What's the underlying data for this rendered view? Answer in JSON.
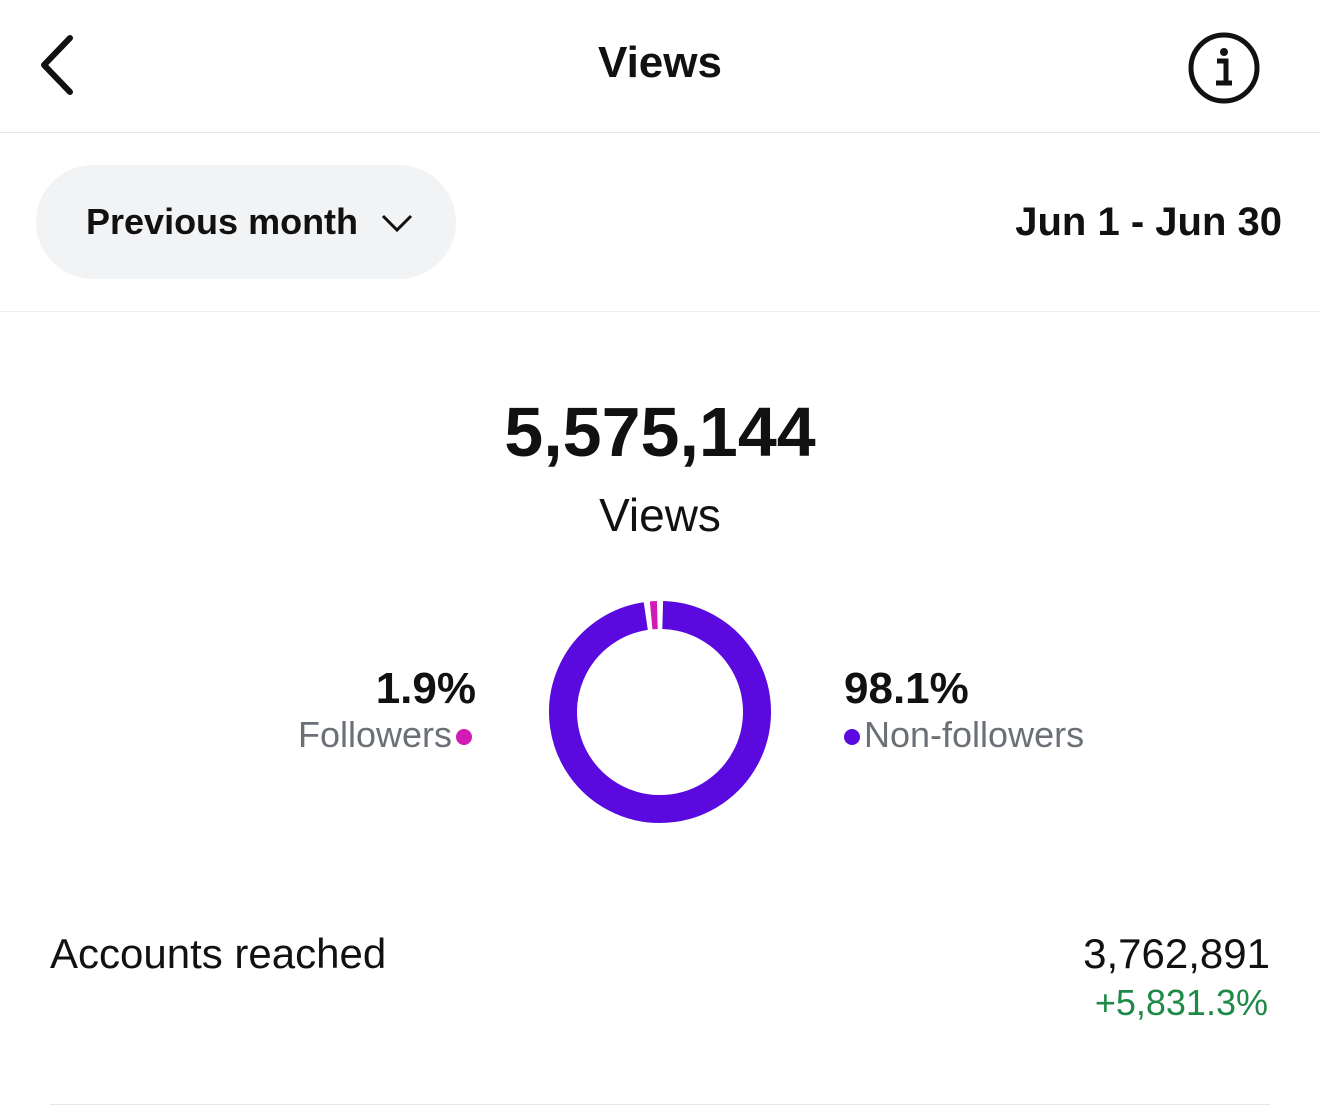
{
  "header": {
    "title": "Views"
  },
  "filter": {
    "range_button": "Previous month",
    "date_range": "Jun 1 - Jun 30"
  },
  "summary": {
    "total": "5,575,144",
    "label": "Views"
  },
  "donut": {
    "segments": [
      {
        "name": "Followers",
        "value": 1.9,
        "label": "1.9%",
        "color": "#d21bb5"
      },
      {
        "name": "Non-followers",
        "value": 98.1,
        "label": "98.1%",
        "color": "#5a0ade"
      }
    ]
  },
  "metrics": [
    {
      "name": "Accounts reached",
      "value": "3,762,891",
      "change": "+5,831.3%"
    }
  ]
}
